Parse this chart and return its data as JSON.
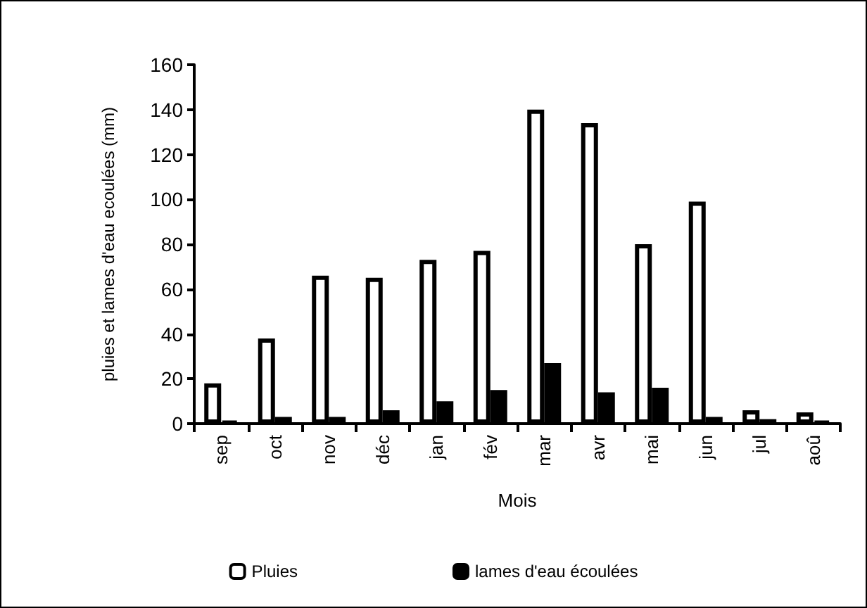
{
  "chart_data": {
    "type": "bar",
    "xlabel": "Mois",
    "ylabel": "pluies et lames d'eau ecoulées (mm)",
    "categories": [
      "sep",
      "oct",
      "nov",
      "déc",
      "jan",
      "fév",
      "mar",
      "avr",
      "mai",
      "jun",
      "jul",
      "aoû"
    ],
    "series": [
      {
        "name": "Pluies",
        "color": "#ffffff",
        "values": [
          18,
          38,
          66,
          65,
          73,
          77,
          140,
          134,
          80,
          99,
          6,
          5
        ]
      },
      {
        "name": "lames d'eau écoulées",
        "color": "#000000",
        "values": [
          1,
          3,
          3,
          6,
          10,
          15,
          27,
          14,
          16,
          3,
          2,
          1
        ]
      }
    ],
    "ylim": [
      0,
      160
    ],
    "yticks": [
      0,
      20,
      40,
      60,
      80,
      100,
      120,
      140,
      160
    ],
    "grid": false,
    "legend": "bottom"
  }
}
